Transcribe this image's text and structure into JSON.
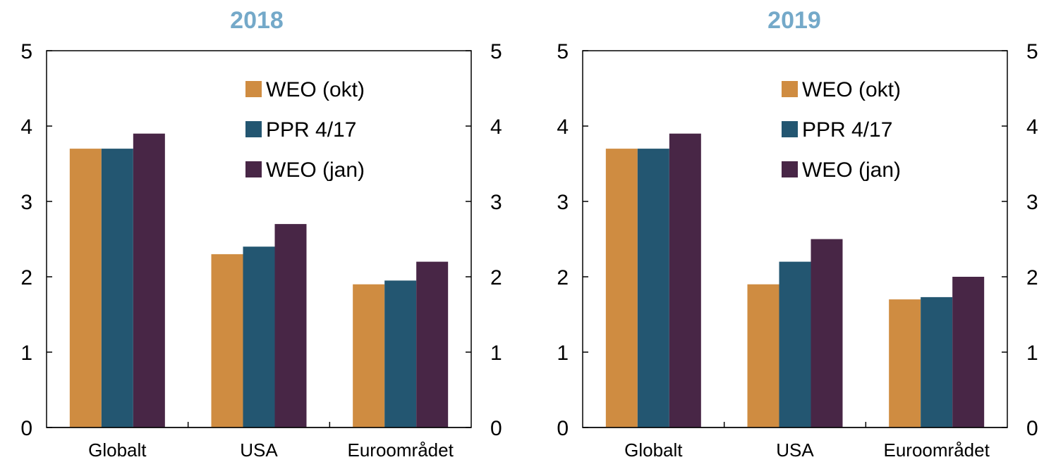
{
  "colors": {
    "title": "#74A9C9",
    "axis": "#000000"
  },
  "chart_data": [
    {
      "type": "bar",
      "title": "2018",
      "categories": [
        "Globalt",
        "USA",
        "Euroområdet"
      ],
      "ylim": [
        0,
        5
      ],
      "yticks": [
        "0",
        "1",
        "2",
        "3",
        "4",
        "5"
      ],
      "secondary_yticks": [
        "0",
        "1",
        "2",
        "3",
        "4",
        "5"
      ],
      "legend_position": "top-right",
      "series": [
        {
          "name": "WEO (okt)",
          "color": "#CF8C41",
          "values": [
            3.7,
            2.3,
            1.9
          ]
        },
        {
          "name": "PPR 4/17",
          "color": "#235671",
          "values": [
            3.7,
            2.4,
            1.95
          ]
        },
        {
          "name": "WEO (jan)",
          "color": "#482646",
          "values": [
            3.9,
            2.7,
            2.2
          ]
        }
      ]
    },
    {
      "type": "bar",
      "title": "2019",
      "categories": [
        "Globalt",
        "USA",
        "Euroområdet"
      ],
      "ylim": [
        0,
        5
      ],
      "yticks": [
        "0",
        "1",
        "2",
        "3",
        "4",
        "5"
      ],
      "secondary_yticks": [
        "0",
        "1",
        "2",
        "3",
        "4",
        "5"
      ],
      "legend_position": "top-right",
      "series": [
        {
          "name": "WEO (okt)",
          "color": "#CF8C41",
          "values": [
            3.7,
            1.9,
            1.7
          ]
        },
        {
          "name": "PPR 4/17",
          "color": "#235671",
          "values": [
            3.7,
            2.2,
            1.73
          ]
        },
        {
          "name": "WEO (jan)",
          "color": "#482646",
          "values": [
            3.9,
            2.5,
            2.0
          ]
        }
      ]
    }
  ]
}
